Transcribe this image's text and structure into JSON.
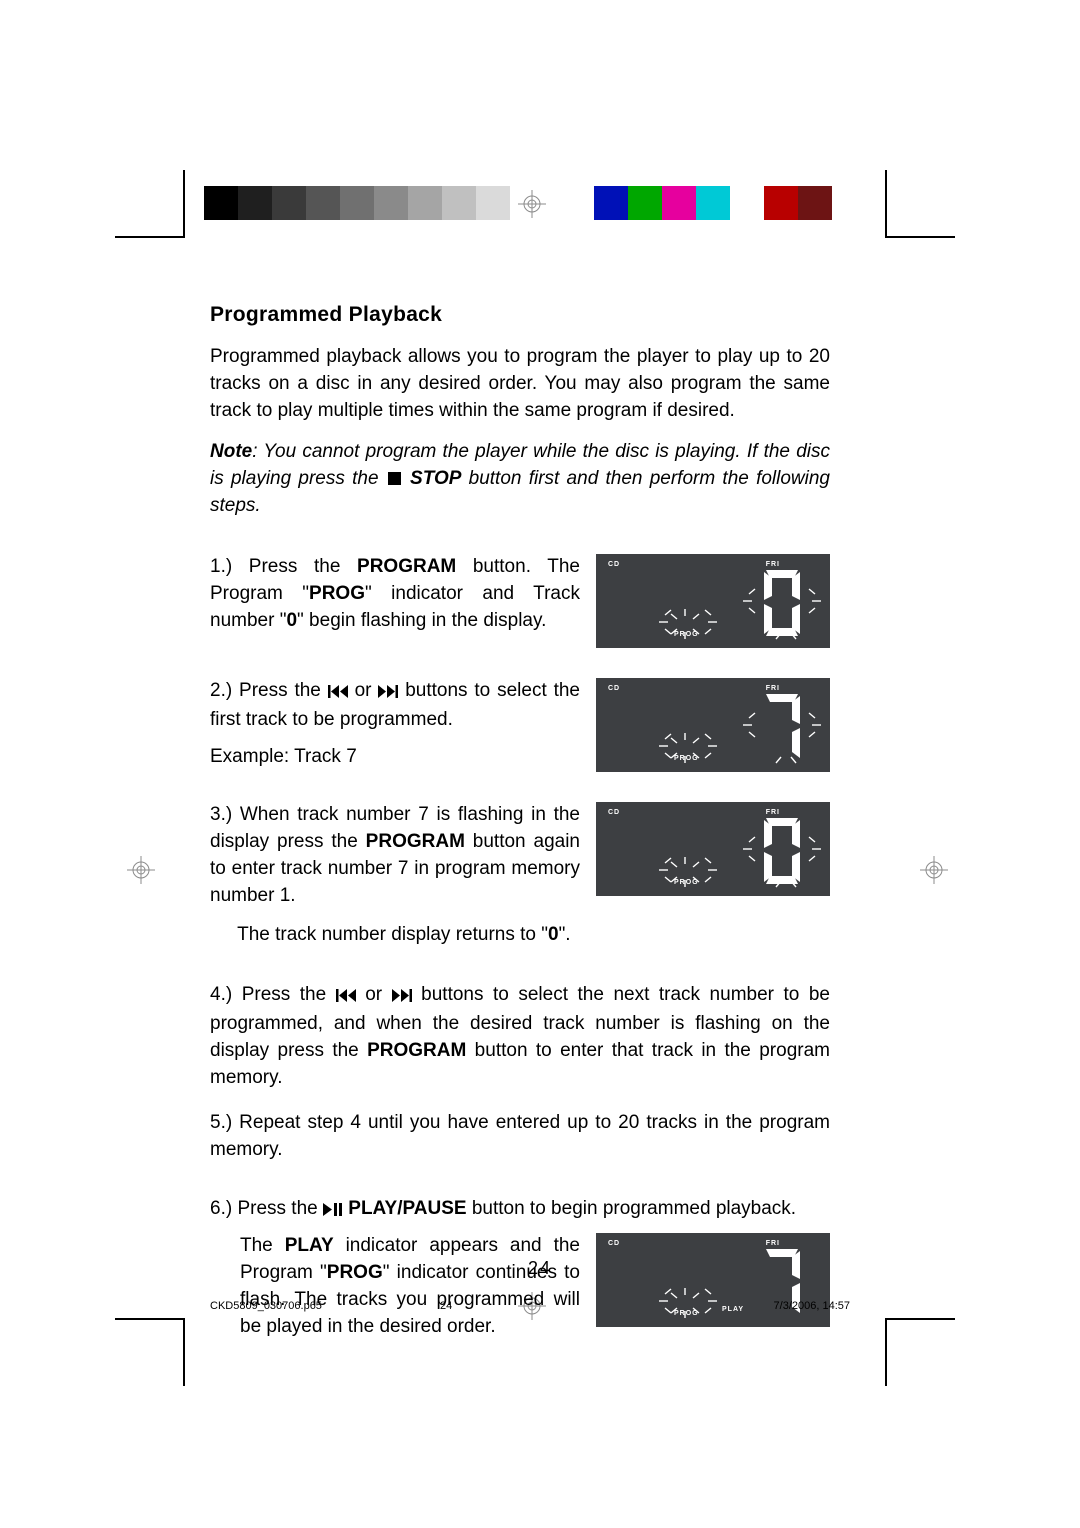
{
  "colorbar": {
    "swatches": [
      "#000000",
      "#1f1f1f",
      "#3a3a3a",
      "#555555",
      "#707070",
      "#8a8a8a",
      "#a5a5a5",
      "#c0c0c0",
      "#dadada",
      "#ffffff",
      "#0011b7",
      "#00a700",
      "#e6009e",
      "#00c9d6",
      "#ffffff",
      "#b80000",
      "#6d1414"
    ],
    "swatch_w": 34,
    "h": 34
  },
  "title": "Programmed Playback",
  "intro": "Programmed playback allows you to program the player to play up to 20 tracks on a disc in any desired order. You may also program the same track to play multiple times within the same program if desired.",
  "note_pre": "Note",
  "note_mid1": ": You cannot program the player while the disc is playing. If the disc is playing press the ",
  "note_stop": "STOP",
  "note_mid2": " button first and then perform the following steps.",
  "step1_a": "1.) Press the ",
  "step1_b": "PROGRAM",
  "step1_c": " button. The Program \"",
  "step1_d": "PROG",
  "step1_e": "\" indicator and Track number \"",
  "step1_f": "0",
  "step1_g": "\" begin flashing in the display.",
  "step2_a": "2.) Press the ",
  "step2_b": " or ",
  "step2_c": " buttons to select the first track to be programmed.",
  "step2_ex": "Example: Track 7",
  "step3_a": "3.) When track number 7 is flashing in the display press the ",
  "step3_b": "PROGRAM",
  "step3_c": " button again to enter track number 7 in program memory number 1.",
  "step3_sub_a": "The track number display returns to \"",
  "step3_sub_b": "0",
  "step3_sub_c": "\".",
  "step4_a": "4.) Press the ",
  "step4_b": " or ",
  "step4_c": " buttons to select the next track number to be programmed, and when the desired track number is flashing on the display press the ",
  "step4_d": "PROGRAM",
  "step4_e": " button to enter that track in the program memory.",
  "step5": "5.) Repeat step 4 until you have entered up to 20 tracks in the program memory.",
  "step6_a": "6.) Press the ",
  "step6_b": " PLAY/PAUSE ",
  "step6_c": " button to begin programmed playback.",
  "step6_sub_a": "The ",
  "step6_sub_b": "PLAY",
  "step6_sub_c": " indicator appears and the Program \"",
  "step6_sub_d": "PROG",
  "step6_sub_e": "\" indicator continues to flash. The tracks you programmed will be played in the desired order.",
  "display": {
    "bg": "#3d3f42",
    "cd": "CD",
    "fri": "FRI",
    "prog": "PROG",
    "play": "PLAY",
    "step1_digit": "0",
    "step2_digit": "7",
    "step3_digit": "0",
    "step6_digit": "7"
  },
  "page_number": "24",
  "footer_filename": "CKD5809_030706.p65",
  "footer_page": "24",
  "footer_date": "7/3/2006, 14:57"
}
